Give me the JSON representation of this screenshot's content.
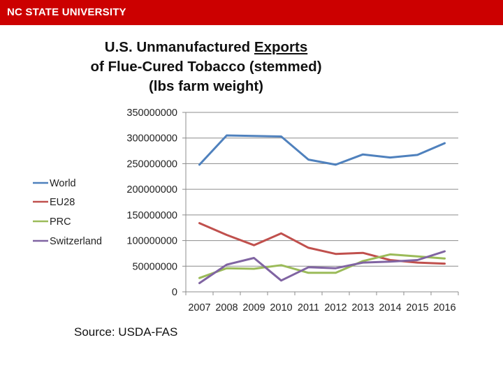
{
  "header": {
    "brand": "NC STATE UNIVERSITY",
    "brand_color": "#cc0000"
  },
  "title": {
    "line1_prefix": "U.S. Unmanufactured ",
    "line1_underlined": "Exports",
    "line2": "of Flue-Cured Tobacco (stemmed)",
    "line3": "(lbs farm weight)"
  },
  "source": "Source:  USDA-FAS",
  "chart_data": {
    "type": "line",
    "x": [
      "2007",
      "2008",
      "2009",
      "2010",
      "2011",
      "2012",
      "2013",
      "2014",
      "2015",
      "2016"
    ],
    "ylim": [
      0,
      350000000
    ],
    "yticks": [
      0,
      50000000,
      100000000,
      150000000,
      200000000,
      250000000,
      300000000,
      350000000
    ],
    "ytick_labels": [
      "0",
      "50000000",
      "100000000",
      "150000000",
      "200000000",
      "250000000",
      "300000000",
      "350000000"
    ],
    "grid": true,
    "legend": "left",
    "series": [
      {
        "name": "World",
        "color": "#4f81bd",
        "values": [
          248000000,
          305000000,
          304000000,
          303000000,
          258000000,
          248000000,
          268000000,
          262000000,
          267000000,
          290000000
        ]
      },
      {
        "name": "EU28",
        "color": "#c0504d",
        "values": [
          134000000,
          111000000,
          91000000,
          114000000,
          86000000,
          74000000,
          76000000,
          62000000,
          57000000,
          55000000
        ]
      },
      {
        "name": "PRC",
        "color": "#9bbb59",
        "values": [
          27000000,
          46000000,
          45000000,
          52000000,
          37000000,
          37000000,
          60000000,
          73000000,
          69000000,
          65000000
        ]
      },
      {
        "name": "Switzerland",
        "color": "#8064a2",
        "values": [
          17000000,
          53000000,
          66000000,
          22000000,
          48000000,
          46000000,
          57000000,
          59000000,
          62000000,
          79000000
        ]
      }
    ]
  }
}
